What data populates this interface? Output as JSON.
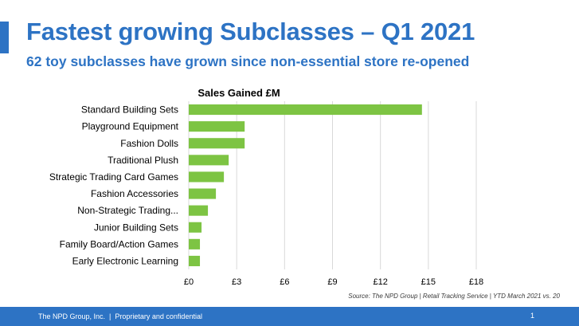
{
  "slide": {
    "title": "Fastest growing Subclasses – Q1 2021",
    "subtitle": "62 toy subclasses have grown since non-essential store re-opened",
    "source": "Source: The NPD Group | Retail Tracking Service | YTD March 2021 vs. 20",
    "footer_company": "The NPD Group, Inc.",
    "footer_separator": "|",
    "footer_note": "Proprietary and confidential",
    "page_number": "1"
  },
  "colors": {
    "accent": "#2d73c4",
    "bar": "#7dc443",
    "grid": "#d9d9d9",
    "text": "#000000"
  },
  "chart_data": {
    "type": "bar",
    "orientation": "horizontal",
    "title": "Sales Gained £M",
    "categories": [
      "Standard Building Sets",
      "Playground Equipment",
      "Fashion Dolls",
      "Traditional Plush",
      "Strategic Trading Card Games",
      "Fashion Accessories",
      "Non-Strategic Trading...",
      "Junior Building Sets",
      "Family Board/Action Games",
      "Early Electronic Learning"
    ],
    "values": [
      14.6,
      3.5,
      3.5,
      2.5,
      2.2,
      1.7,
      1.2,
      0.8,
      0.7,
      0.7
    ],
    "xlim": [
      0,
      18
    ],
    "xticks": [
      0,
      3,
      6,
      9,
      12,
      15,
      18
    ],
    "xtick_labels": [
      "£0",
      "£3",
      "£6",
      "£9",
      "£12",
      "£15",
      "£18"
    ],
    "grid": "vertical"
  }
}
